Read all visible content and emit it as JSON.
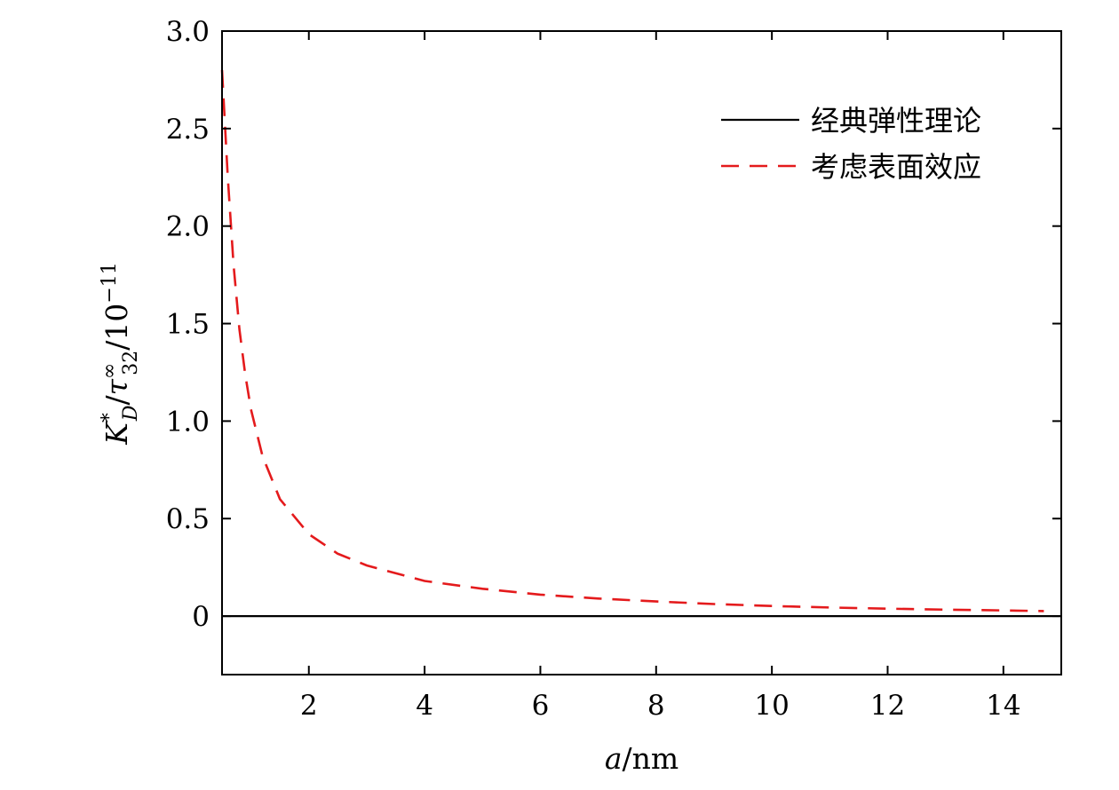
{
  "chart_data": {
    "type": "line",
    "xlabel": "a/nm",
    "ylabel": "K*_D/τ^∞_32/10^−11",
    "xlim": [
      0.5,
      15
    ],
    "ylim": [
      -0.3,
      3.0
    ],
    "x_ticks": [
      2,
      4,
      6,
      8,
      10,
      12,
      14
    ],
    "x_tick_labels": [
      "2",
      "4",
      "6",
      "8",
      "10",
      "12",
      "14"
    ],
    "y_ticks": [
      0,
      0.5,
      1.0,
      1.5,
      2.0,
      2.5,
      3.0
    ],
    "y_tick_labels": [
      "0",
      "0.5",
      "1.0",
      "1.5",
      "2.0",
      "2.5",
      "3.0"
    ],
    "grid": false,
    "legend_position": "top-right",
    "series": [
      {
        "name": "经典弹性理论",
        "style": "solid",
        "color": "#000000",
        "x": [
          0.5,
          15
        ],
        "y": [
          0,
          0
        ]
      },
      {
        "name": "考虑表面效应",
        "style": "dashed",
        "color": "#e41a1c",
        "x": [
          0.5,
          0.6,
          0.7,
          0.8,
          0.9,
          1.0,
          1.2,
          1.5,
          2.0,
          2.5,
          3.0,
          4.0,
          5.0,
          6.0,
          7.0,
          8.0,
          9.0,
          10.0,
          11.0,
          12.0,
          13.0,
          14.0,
          14.7
        ],
        "y": [
          2.8,
          2.25,
          1.8,
          1.47,
          1.24,
          1.06,
          0.82,
          0.6,
          0.42,
          0.32,
          0.26,
          0.18,
          0.14,
          0.11,
          0.09,
          0.075,
          0.062,
          0.052,
          0.044,
          0.038,
          0.033,
          0.029,
          0.026
        ]
      }
    ]
  }
}
